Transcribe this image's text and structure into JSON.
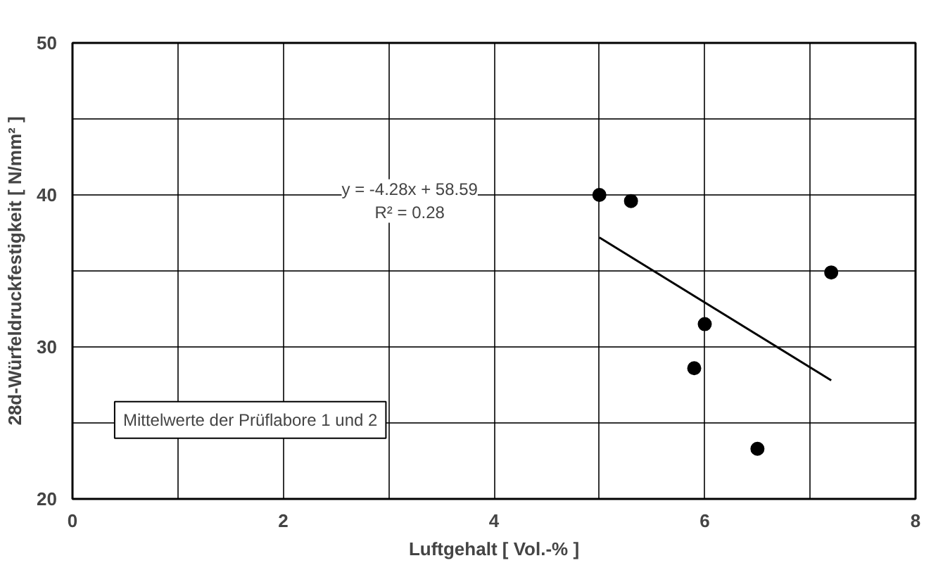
{
  "chart_data": {
    "type": "scatter",
    "xlabel": "Luftgehalt [ Vol.-% ]",
    "ylabel": "28d-Würfeldruckfestigkeit [ N/mm² ]",
    "xlim": [
      0,
      8
    ],
    "ylim": [
      20,
      50
    ],
    "xticks": [
      0,
      {
        "value": 1,
        "label": null
      },
      2,
      {
        "value": 3,
        "label": null
      },
      4,
      {
        "value": 5,
        "label": null
      },
      6,
      {
        "value": 7,
        "label": null
      },
      8
    ],
    "yticks": [
      20,
      {
        "value": 25,
        "label": null
      },
      30,
      {
        "value": 35,
        "label": null
      },
      40,
      {
        "value": 45,
        "label": null
      },
      50
    ],
    "grid": true,
    "series": [
      {
        "marker": "circle",
        "color": "#000000",
        "x": [
          5.0,
          5.3,
          5.9,
          6.0,
          6.5,
          7.2
        ],
        "values": [
          40.0,
          39.6,
          28.6,
          31.5,
          23.3,
          34.9
        ]
      },
      {
        "type": "line",
        "marker": "none",
        "color": "#000000",
        "x": [
          5.0,
          7.2
        ],
        "values": [
          37.2,
          27.8
        ]
      }
    ],
    "annotations": [
      "y = -4.28x + 58.59\nR² = 0.28",
      "Mittelwerte der Prüflabore 1 und 2"
    ]
  }
}
